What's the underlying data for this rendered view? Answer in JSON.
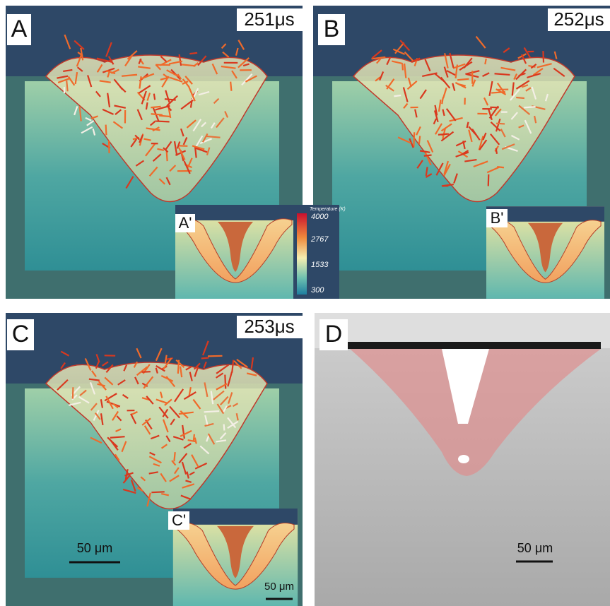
{
  "panels": [
    {
      "label": "A",
      "time": "251μs",
      "inset_label": "A'"
    },
    {
      "label": "B",
      "time": "252μs",
      "inset_label": "B'"
    },
    {
      "label": "C",
      "time": "253μs",
      "inset_label": "C'",
      "scale_bar": "50 μm",
      "inset_scale_bar": "50 μm"
    },
    {
      "label": "D",
      "scale_bar": "50 μm"
    }
  ],
  "colorbar": {
    "title": "Temperature (K)",
    "ticks": [
      "4000",
      "2767",
      "1533",
      "300"
    ]
  }
}
